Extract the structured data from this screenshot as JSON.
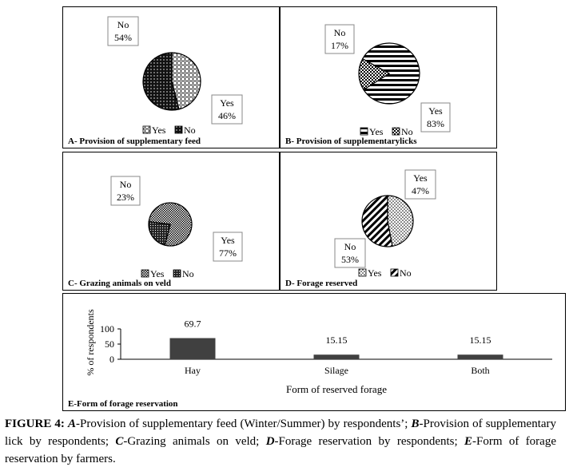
{
  "legend": {
    "yes": "Yes",
    "no": "No"
  },
  "panels": {
    "a": {
      "title": "A- Provision of supplementary feed"
    },
    "b": {
      "title": "B- Provision of supplementarylicks"
    },
    "c": {
      "title": "C-  Grazing animals on veld"
    },
    "d": {
      "title": "D- Forage reserved"
    },
    "e": {
      "title": "E-Form of forage reservation"
    }
  },
  "caption": {
    "label": "FIGURE 4:",
    "a_key": "A",
    "a_text": "-Provision of supplementary feed (Winter/Summer) by respondents’;",
    "b_key": "B",
    "b_text": "-Provision of supplementary lick by respondents;",
    "c_key": "C",
    "c_text": "-Grazing animals on veld;",
    "d_key": "D",
    "d_text": "-Forage reservation by respondents;",
    "e_key": "E",
    "e_text": "-Form of forage reservation by farmers."
  },
  "chart_data": [
    {
      "type": "pie",
      "title": "A- Provision of supplementary feed",
      "labels": [
        "Yes",
        "No"
      ],
      "values": [
        46,
        54
      ],
      "data_labels": [
        "Yes\n46%",
        "No\n54%"
      ],
      "legend_position": "bottom"
    },
    {
      "type": "pie",
      "title": "B- Provision of supplementarylicks",
      "labels": [
        "Yes",
        "No"
      ],
      "values": [
        83,
        17
      ],
      "data_labels": [
        "Yes\n83%",
        "No\n17%"
      ],
      "legend_position": "bottom"
    },
    {
      "type": "pie",
      "title": "C-  Grazing animals on veld",
      "labels": [
        "Yes",
        "No"
      ],
      "values": [
        77,
        23
      ],
      "data_labels": [
        "Yes\n77%",
        "No\n23%"
      ],
      "legend_position": "bottom"
    },
    {
      "type": "pie",
      "title": "D- Forage reserved",
      "labels": [
        "Yes",
        "No"
      ],
      "values": [
        47,
        53
      ],
      "data_labels": [
        "Yes\n47%",
        "No\n53%"
      ],
      "legend_position": "bottom"
    },
    {
      "type": "bar",
      "title": "E-Form of forage reservation",
      "categories": [
        "Hay",
        "Silage",
        "Both"
      ],
      "values": [
        69.7,
        15.15,
        15.15
      ],
      "data_labels": [
        "69.7",
        "15.15",
        "15.15"
      ],
      "xlabel": "Form of reserved forage",
      "ylabel": "% of respondents",
      "yticks": [
        "0",
        "50",
        "100"
      ],
      "ylim": [
        0,
        100
      ],
      "color": "#404040"
    }
  ]
}
